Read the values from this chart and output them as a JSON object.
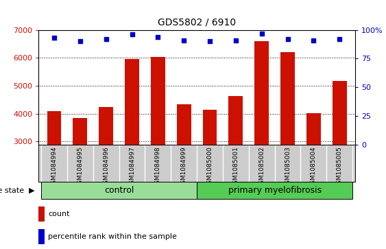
{
  "title": "GDS5802 / 6910",
  "samples": [
    "GSM1084994",
    "GSM1084995",
    "GSM1084996",
    "GSM1084997",
    "GSM1084998",
    "GSM1084999",
    "GSM1085000",
    "GSM1085001",
    "GSM1085002",
    "GSM1085003",
    "GSM1085004",
    "GSM1085005"
  ],
  "counts": [
    4100,
    3850,
    4250,
    5950,
    6020,
    4330,
    4150,
    4620,
    6600,
    6200,
    4030,
    5180
  ],
  "percentiles": [
    93,
    90,
    92,
    96,
    94,
    91,
    90,
    91,
    97,
    92,
    91,
    92
  ],
  "ylim_left": [
    2900,
    7000
  ],
  "ylim_right": [
    0,
    100
  ],
  "yticks_left": [
    3000,
    4000,
    5000,
    6000,
    7000
  ],
  "yticks_right": [
    0,
    25,
    50,
    75,
    100
  ],
  "bar_color": "#cc1100",
  "dot_color": "#0000cc",
  "label_bg_color": "#cccccc",
  "control_color": "#99dd99",
  "disease_color": "#55cc55",
  "control_label": "control",
  "disease_label": "primary myelofibrosis",
  "disease_state_label": "disease state",
  "legend_count": "count",
  "legend_percentile": "percentile rank within the sample",
  "n_control": 6,
  "n_disease": 6,
  "bar_width": 0.55
}
